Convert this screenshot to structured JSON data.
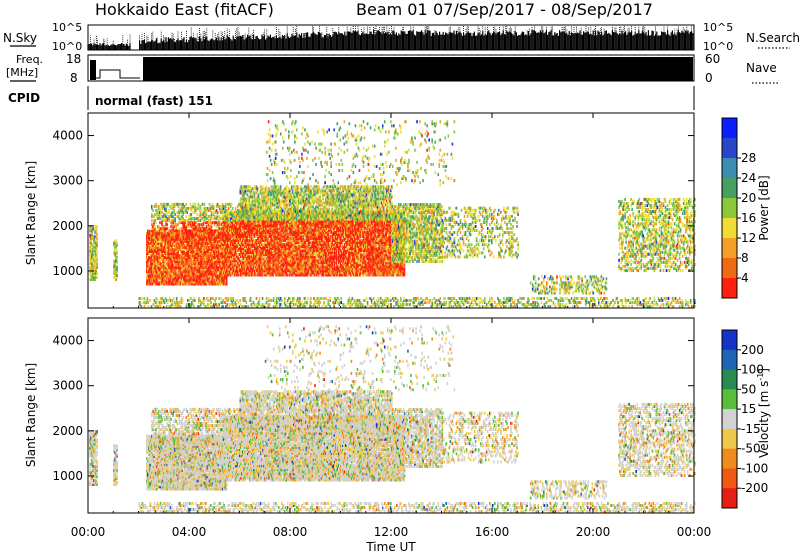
{
  "header": {
    "station": "Hokkaido East (fitACF)",
    "beam": "Beam 01",
    "dates": "07/Sep/2017 - 08/Sep/2017"
  },
  "top_panels": {
    "nsky_label": "N.Sky",
    "nsky_ticks": [
      "10^5",
      "10^0"
    ],
    "nsearch_label": "N.Search",
    "nsearch_ticks": [
      "10^5",
      "10^0"
    ],
    "freq_label_1": "Freq.",
    "freq_label_2": "[MHz]",
    "freq_ticks": [
      "18",
      "8"
    ],
    "nave_label": "Nave",
    "nave_ticks": [
      "60",
      "0"
    ],
    "cpid_label": "CPID",
    "cpid_value": "normal (fast) 151"
  },
  "chart_data": [
    {
      "type": "heatmap",
      "name": "power",
      "ylabel": "Slant Range [km]",
      "xlabel": "",
      "ylim": [
        180,
        4500
      ],
      "yticks": [
        "1000",
        "2000",
        "3000",
        "4000"
      ],
      "colorbar": {
        "label": "Power [dB]",
        "ticks": [
          "4",
          "8",
          "12",
          "16",
          "20",
          "24",
          "28"
        ],
        "colors": [
          "#0a1eff",
          "#2846c8",
          "#3c8cb4",
          "#46a064",
          "#8cc83c",
          "#f0dc32",
          "#f5a028",
          "#f06a14",
          "#ff2010"
        ]
      }
    },
    {
      "type": "heatmap",
      "name": "velocity",
      "ylabel": "Slant Range [km]",
      "xlabel": "Time UT",
      "ylim": [
        180,
        4500
      ],
      "yticks": [
        "1000",
        "2000",
        "3000",
        "4000"
      ],
      "xticks": [
        "00:00",
        "04:00",
        "08:00",
        "12:00",
        "16:00",
        "20:00",
        "00:00"
      ],
      "colorbar": {
        "label": "Velocity [m s",
        "label_sup": "-1",
        "label_end": "]",
        "ticks": [
          "200",
          "100",
          "50",
          "15",
          "-15",
          "-50",
          "-100",
          "-200"
        ],
        "colors": [
          "#1432c8",
          "#1e64b4",
          "#288c50",
          "#5abe3c",
          "#d2d2d2",
          "#f0c84a",
          "#f08c1e",
          "#f05a14",
          "#e61e14"
        ]
      }
    }
  ]
}
